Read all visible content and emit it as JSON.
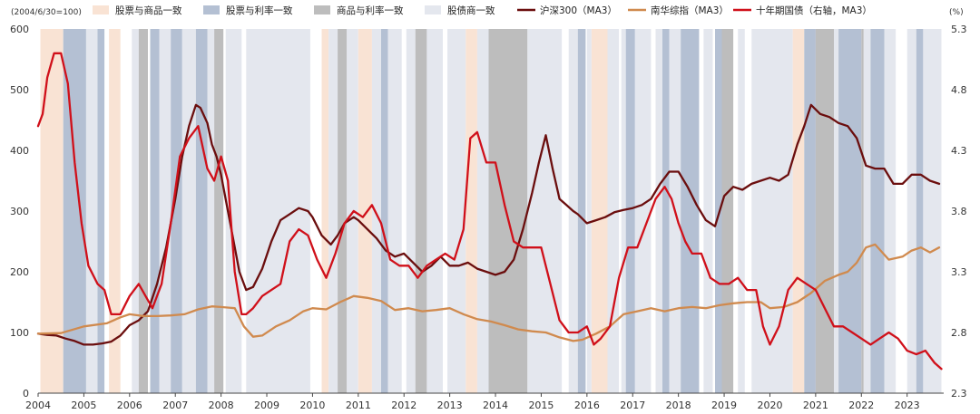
{
  "chart_data": {
    "type": "line",
    "left_axis_note": "(2004/6/30=100)",
    "right_axis_unit": "(%)",
    "xlim": [
      2004.0,
      2023.8
    ],
    "ylim_left": [
      0,
      600
    ],
    "ylim_right": [
      2.3,
      5.3
    ],
    "x_ticks": [
      2004,
      2005,
      2006,
      2007,
      2008,
      2009,
      2010,
      2011,
      2012,
      2013,
      2014,
      2015,
      2016,
      2017,
      2018,
      2019,
      2020,
      2021,
      2022,
      2023
    ],
    "x_tick_labels": [
      "2004",
      "2005",
      "2006",
      "2007",
      "2008",
      "2009",
      "2010",
      "2011",
      "2012",
      "2013",
      "2014",
      "2015",
      "2016",
      "2017",
      "2018",
      "2019",
      "2020",
      "2021",
      "2022",
      "2023"
    ],
    "y_ticks_left": [
      0,
      100,
      200,
      300,
      400,
      500,
      600
    ],
    "y_tick_labels_left": [
      "0",
      "100",
      "200",
      "300",
      "400",
      "500",
      "600"
    ],
    "y_ticks_right": [
      2.3,
      2.8,
      3.3,
      3.8,
      4.3,
      4.8,
      5.3
    ],
    "y_tick_labels_right": [
      "2.3",
      "2.8",
      "3.3",
      "3.8",
      "4.3",
      "4.8",
      "5.3"
    ],
    "legend": [
      {
        "key": "regime-stock-commodity",
        "label": "股票与商品一致",
        "kind": "box",
        "color": "#f9e3d4"
      },
      {
        "key": "regime-stock-rate",
        "label": "股票与利率一致",
        "kind": "box",
        "color": "#b4c0d3"
      },
      {
        "key": "regime-commodity-rate",
        "label": "商品与利率一致",
        "kind": "box",
        "color": "#bdbdbd"
      },
      {
        "key": "regime-stock-bond",
        "label": "股债商一致",
        "kind": "box",
        "color": "#e4e7ee"
      },
      {
        "key": "csi300",
        "label": "沪深300（MA3）",
        "kind": "line",
        "color": "#6b0e0e"
      },
      {
        "key": "nanhua",
        "label": "南华综指（MA3）",
        "kind": "line",
        "color": "#d08a4e"
      },
      {
        "key": "cgb10y",
        "label": "十年期国债（右轴，MA3）",
        "kind": "line",
        "color": "#d0101a"
      }
    ],
    "regimes": [
      {
        "type": "regime-stock-commodity",
        "start": 2004.05,
        "end": 2004.55
      },
      {
        "type": "regime-stock-rate",
        "start": 2004.55,
        "end": 2005.05
      },
      {
        "type": "regime-stock-bond",
        "start": 2005.05,
        "end": 2005.3
      },
      {
        "type": "regime-stock-rate",
        "start": 2005.3,
        "end": 2005.45
      },
      {
        "type": "regime-stock-commodity",
        "start": 2005.55,
        "end": 2005.8
      },
      {
        "type": "regime-stock-bond",
        "start": 2006.05,
        "end": 2006.2
      },
      {
        "type": "regime-commodity-rate",
        "start": 2006.2,
        "end": 2006.4
      },
      {
        "type": "regime-stock-rate",
        "start": 2006.45,
        "end": 2006.65
      },
      {
        "type": "regime-stock-bond",
        "start": 2006.65,
        "end": 2006.9
      },
      {
        "type": "regime-stock-rate",
        "start": 2006.9,
        "end": 2007.15
      },
      {
        "type": "regime-stock-bond",
        "start": 2007.15,
        "end": 2007.45
      },
      {
        "type": "regime-stock-rate",
        "start": 2007.45,
        "end": 2007.7
      },
      {
        "type": "regime-stock-bond",
        "start": 2007.7,
        "end": 2007.85
      },
      {
        "type": "regime-commodity-rate",
        "start": 2007.85,
        "end": 2008.05
      },
      {
        "type": "regime-stock-bond",
        "start": 2008.1,
        "end": 2008.45
      },
      {
        "type": "regime-stock-bond",
        "start": 2008.55,
        "end": 2009.95
      },
      {
        "type": "regime-stock-commodity",
        "start": 2010.2,
        "end": 2010.35
      },
      {
        "type": "regime-stock-bond",
        "start": 2010.35,
        "end": 2010.55
      },
      {
        "type": "regime-commodity-rate",
        "start": 2010.55,
        "end": 2010.75
      },
      {
        "type": "regime-stock-bond",
        "start": 2010.75,
        "end": 2011.0
      },
      {
        "type": "regime-stock-commodity",
        "start": 2011.0,
        "end": 2011.3
      },
      {
        "type": "regime-stock-bond",
        "start": 2011.3,
        "end": 2011.5
      },
      {
        "type": "regime-stock-rate",
        "start": 2011.5,
        "end": 2011.65
      },
      {
        "type": "regime-stock-bond",
        "start": 2011.65,
        "end": 2011.95
      },
      {
        "type": "regime-stock-bond",
        "start": 2012.05,
        "end": 2012.25
      },
      {
        "type": "regime-commodity-rate",
        "start": 2012.25,
        "end": 2012.5
      },
      {
        "type": "regime-stock-bond",
        "start": 2012.5,
        "end": 2012.85
      },
      {
        "type": "regime-stock-bond",
        "start": 2012.95,
        "end": 2013.35
      },
      {
        "type": "regime-stock-commodity",
        "start": 2013.35,
        "end": 2013.6
      },
      {
        "type": "regime-stock-bond",
        "start": 2013.6,
        "end": 2013.85
      },
      {
        "type": "regime-commodity-rate",
        "start": 2013.85,
        "end": 2014.7
      },
      {
        "type": "regime-stock-bond",
        "start": 2014.7,
        "end": 2015.45
      },
      {
        "type": "regime-stock-bond",
        "start": 2015.6,
        "end": 2015.8
      },
      {
        "type": "regime-stock-rate",
        "start": 2015.8,
        "end": 2015.97
      },
      {
        "type": "regime-stock-bond",
        "start": 2016.0,
        "end": 2016.1
      },
      {
        "type": "regime-stock-commodity",
        "start": 2016.1,
        "end": 2016.45
      },
      {
        "type": "regime-stock-bond",
        "start": 2016.45,
        "end": 2016.7
      },
      {
        "type": "regime-stock-bond",
        "start": 2016.75,
        "end": 2016.85
      },
      {
        "type": "regime-stock-rate",
        "start": 2016.85,
        "end": 2017.05
      },
      {
        "type": "regime-stock-bond",
        "start": 2017.05,
        "end": 2017.4
      },
      {
        "type": "regime-stock-bond",
        "start": 2017.5,
        "end": 2017.65
      },
      {
        "type": "regime-stock-rate",
        "start": 2017.65,
        "end": 2017.8
      },
      {
        "type": "regime-stock-bond",
        "start": 2017.8,
        "end": 2018.05
      },
      {
        "type": "regime-stock-rate",
        "start": 2018.05,
        "end": 2018.45
      },
      {
        "type": "regime-stock-bond",
        "start": 2018.55,
        "end": 2018.75
      },
      {
        "type": "regime-stock-rate",
        "start": 2018.8,
        "end": 2018.95
      },
      {
        "type": "regime-commodity-rate",
        "start": 2018.95,
        "end": 2019.2
      },
      {
        "type": "regime-stock-bond",
        "start": 2019.3,
        "end": 2019.45
      },
      {
        "type": "regime-stock-bond",
        "start": 2019.6,
        "end": 2020.5
      },
      {
        "type": "regime-stock-commodity",
        "start": 2020.5,
        "end": 2020.75
      },
      {
        "type": "regime-stock-rate",
        "start": 2020.75,
        "end": 2021.0
      },
      {
        "type": "regime-commodity-rate",
        "start": 2021.0,
        "end": 2021.4
      },
      {
        "type": "regime-stock-bond",
        "start": 2021.4,
        "end": 2021.5
      },
      {
        "type": "regime-stock-rate",
        "start": 2021.5,
        "end": 2022.0
      },
      {
        "type": "regime-commodity-rate",
        "start": 2022.0,
        "end": 2022.05
      },
      {
        "type": "regime-stock-bond",
        "start": 2022.05,
        "end": 2022.2
      },
      {
        "type": "regime-stock-rate",
        "start": 2022.2,
        "end": 2022.5
      },
      {
        "type": "regime-stock-bond",
        "start": 2022.5,
        "end": 2022.75
      },
      {
        "type": "regime-stock-bond",
        "start": 2023.0,
        "end": 2023.2
      },
      {
        "type": "regime-stock-rate",
        "start": 2023.2,
        "end": 2023.35
      },
      {
        "type": "regime-stock-bond",
        "start": 2023.35,
        "end": 2023.75
      }
    ],
    "series": [
      {
        "key": "csi300",
        "name": "沪深300（MA3）",
        "axis": "left",
        "color": "#6b0e0e",
        "x": [
          2004.0,
          2004.2,
          2004.4,
          2004.6,
          2004.8,
          2005.0,
          2005.2,
          2005.4,
          2005.6,
          2005.8,
          2006.0,
          2006.2,
          2006.4,
          2006.6,
          2006.8,
          2007.0,
          2007.15,
          2007.3,
          2007.45,
          2007.55,
          2007.7,
          2007.8,
          2007.9,
          2008.0,
          2008.2,
          2008.4,
          2008.55,
          2008.7,
          2008.9,
          2009.1,
          2009.3,
          2009.5,
          2009.7,
          2009.9,
          2010.0,
          2010.2,
          2010.4,
          2010.55,
          2010.7,
          2010.9,
          2011.0,
          2011.2,
          2011.4,
          2011.6,
          2011.8,
          2012.0,
          2012.2,
          2012.4,
          2012.6,
          2012.8,
          2013.0,
          2013.2,
          2013.4,
          2013.6,
          2013.8,
          2014.0,
          2014.2,
          2014.4,
          2014.6,
          2014.8,
          2014.95,
          2015.1,
          2015.25,
          2015.4,
          2015.55,
          2015.7,
          2015.8,
          2016.0,
          2016.2,
          2016.4,
          2016.6,
          2016.8,
          2017.0,
          2017.2,
          2017.4,
          2017.6,
          2017.8,
          2018.0,
          2018.2,
          2018.4,
          2018.6,
          2018.8,
          2019.0,
          2019.2,
          2019.4,
          2019.6,
          2019.8,
          2020.0,
          2020.2,
          2020.4,
          2020.6,
          2020.75,
          2020.9,
          2021.1,
          2021.3,
          2021.5,
          2021.7,
          2021.9,
          2022.1,
          2022.3,
          2022.5,
          2022.7,
          2022.9,
          2023.1,
          2023.3,
          2023.5,
          2023.7
        ],
        "values": [
          98,
          96,
          95,
          90,
          86,
          80,
          80,
          82,
          85,
          95,
          112,
          120,
          135,
          180,
          240,
          320,
          390,
          440,
          475,
          470,
          445,
          410,
          390,
          360,
          280,
          200,
          170,
          175,
          205,
          250,
          285,
          295,
          305,
          300,
          290,
          260,
          245,
          260,
          280,
          290,
          285,
          270,
          255,
          235,
          225,
          230,
          215,
          200,
          210,
          225,
          210,
          210,
          215,
          205,
          200,
          195,
          200,
          220,
          270,
          330,
          380,
          425,
          370,
          320,
          310,
          300,
          295,
          280,
          285,
          290,
          298,
          302,
          305,
          310,
          320,
          345,
          365,
          365,
          340,
          310,
          285,
          275,
          325,
          340,
          335,
          345,
          350,
          355,
          350,
          360,
          410,
          440,
          475,
          460,
          455,
          445,
          440,
          420,
          375,
          370,
          370,
          345,
          345,
          360,
          360,
          350,
          345
        ]
      },
      {
        "key": "nanhua",
        "name": "南华综指（MA3）",
        "axis": "left",
        "color": "#d08a4e",
        "x": [
          2004.0,
          2004.5,
          2005.0,
          2005.5,
          2005.8,
          2006.0,
          2006.3,
          2006.6,
          2006.9,
          2007.2,
          2007.5,
          2007.8,
          2008.0,
          2008.3,
          2008.5,
          2008.7,
          2008.9,
          2009.2,
          2009.5,
          2009.8,
          2010.0,
          2010.3,
          2010.6,
          2010.9,
          2011.2,
          2011.5,
          2011.8,
          2012.1,
          2012.4,
          2012.7,
          2013.0,
          2013.3,
          2013.6,
          2013.9,
          2014.2,
          2014.5,
          2014.8,
          2015.1,
          2015.4,
          2015.7,
          2015.9,
          2016.2,
          2016.5,
          2016.8,
          2017.1,
          2017.4,
          2017.7,
          2018.0,
          2018.3,
          2018.6,
          2018.9,
          2019.2,
          2019.5,
          2019.8,
          2020.0,
          2020.3,
          2020.6,
          2020.9,
          2021.2,
          2021.5,
          2021.7,
          2021.9,
          2022.1,
          2022.3,
          2022.6,
          2022.9,
          2023.1,
          2023.3,
          2023.5,
          2023.7
        ],
        "values": [
          98,
          99,
          110,
          115,
          125,
          130,
          127,
          127,
          128,
          130,
          138,
          143,
          142,
          140,
          110,
          93,
          95,
          110,
          120,
          135,
          140,
          138,
          150,
          160,
          157,
          152,
          137,
          140,
          135,
          137,
          140,
          130,
          122,
          118,
          112,
          105,
          102,
          100,
          92,
          86,
          88,
          98,
          110,
          130,
          135,
          140,
          135,
          140,
          142,
          140,
          145,
          148,
          150,
          150,
          140,
          142,
          150,
          165,
          185,
          195,
          200,
          215,
          240,
          245,
          220,
          225,
          235,
          240,
          232,
          240
        ]
      },
      {
        "key": "cgb10y",
        "name": "十年期国债（右轴，MA3）",
        "axis": "right",
        "color": "#d0101a",
        "x": [
          2004.0,
          2004.1,
          2004.2,
          2004.35,
          2004.5,
          2004.65,
          2004.8,
          2004.95,
          2005.1,
          2005.3,
          2005.45,
          2005.6,
          2005.8,
          2006.0,
          2006.2,
          2006.35,
          2006.5,
          2006.7,
          2006.9,
          2007.1,
          2007.3,
          2007.5,
          2007.7,
          2007.85,
          2008.0,
          2008.15,
          2008.3,
          2008.45,
          2008.55,
          2008.7,
          2008.9,
          2009.1,
          2009.3,
          2009.5,
          2009.7,
          2009.9,
          2010.1,
          2010.3,
          2010.5,
          2010.7,
          2010.9,
          2011.1,
          2011.3,
          2011.5,
          2011.7,
          2011.9,
          2012.1,
          2012.3,
          2012.5,
          2012.7,
          2012.9,
          2013.1,
          2013.3,
          2013.45,
          2013.6,
          2013.8,
          2014.0,
          2014.2,
          2014.4,
          2014.6,
          2014.8,
          2015.0,
          2015.2,
          2015.4,
          2015.6,
          2015.8,
          2016.0,
          2016.15,
          2016.3,
          2016.5,
          2016.7,
          2016.9,
          2017.1,
          2017.3,
          2017.5,
          2017.7,
          2017.85,
          2018.0,
          2018.15,
          2018.3,
          2018.5,
          2018.7,
          2018.9,
          2019.1,
          2019.3,
          2019.5,
          2019.7,
          2019.85,
          2020.0,
          2020.2,
          2020.4,
          2020.6,
          2020.8,
          2021.0,
          2021.2,
          2021.4,
          2021.6,
          2021.8,
          2022.0,
          2022.2,
          2022.4,
          2022.6,
          2022.8,
          2023.0,
          2023.2,
          2023.4,
          2023.6,
          2023.75
        ],
        "values": [
          4.5,
          4.6,
          4.9,
          5.1,
          5.1,
          4.85,
          4.2,
          3.7,
          3.35,
          3.2,
          3.15,
          2.95,
          2.95,
          3.1,
          3.2,
          3.1,
          3.0,
          3.2,
          3.7,
          4.25,
          4.4,
          4.5,
          4.15,
          4.05,
          4.25,
          4.05,
          3.3,
          2.95,
          2.95,
          3.0,
          3.1,
          3.15,
          3.2,
          3.55,
          3.65,
          3.6,
          3.4,
          3.25,
          3.45,
          3.7,
          3.8,
          3.75,
          3.85,
          3.7,
          3.4,
          3.35,
          3.35,
          3.25,
          3.35,
          3.4,
          3.45,
          3.4,
          3.65,
          4.4,
          4.45,
          4.2,
          4.2,
          3.85,
          3.55,
          3.5,
          3.5,
          3.5,
          3.2,
          2.9,
          2.8,
          2.8,
          2.85,
          2.7,
          2.75,
          2.85,
          3.25,
          3.5,
          3.5,
          3.7,
          3.9,
          4.0,
          3.9,
          3.7,
          3.55,
          3.45,
          3.45,
          3.25,
          3.2,
          3.2,
          3.25,
          3.15,
          3.15,
          2.85,
          2.7,
          2.85,
          3.15,
          3.25,
          3.2,
          3.15,
          3.0,
          2.85,
          2.85,
          2.8,
          2.75,
          2.7,
          2.75,
          2.8,
          2.75,
          2.65,
          2.62,
          2.65,
          2.55,
          2.5
        ]
      }
    ],
    "grid": false
  }
}
